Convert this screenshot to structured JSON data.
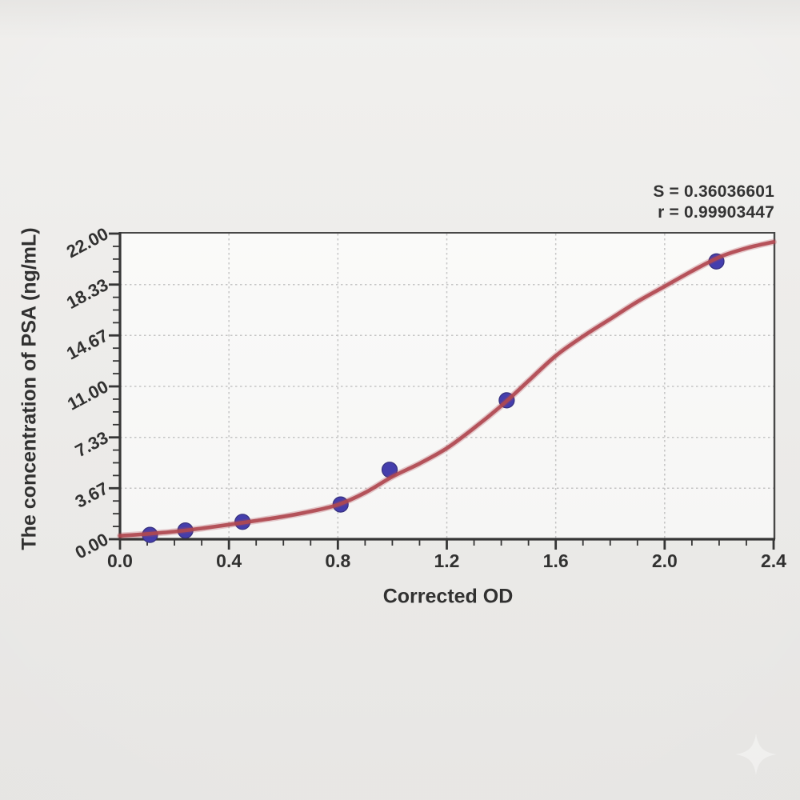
{
  "stats": {
    "s_label": "S = 0.36036601",
    "r_label": "r = 0.99903447"
  },
  "chart_data": {
    "type": "scatter",
    "title": "",
    "xlabel": "Corrected OD",
    "ylabel": "The concentration of PSA (ng/mL)",
    "xlim": [
      0,
      2.4
    ],
    "ylim": [
      0,
      22
    ],
    "x_ticks": [
      0,
      0.4,
      0.8,
      1.2,
      1.6,
      2.0,
      2.4
    ],
    "x_tick_labels": [
      "0.0",
      "0.4",
      "0.8",
      "1.2",
      "1.6",
      "2.0",
      "2.4"
    ],
    "x_minor_step": 0.1,
    "y_ticks": [
      0,
      3.67,
      7.33,
      11.0,
      14.67,
      18.33,
      22.0
    ],
    "y_tick_labels": [
      "0.00",
      "3.67",
      "7.33",
      "11.00",
      "14.67",
      "18.33",
      "22.00"
    ],
    "y_minors_between_majors": 3,
    "grid": "dotted",
    "legend": "none",
    "series": [
      {
        "name": "standard-points",
        "type": "scatter",
        "points": [
          [
            0.11,
            0.31
          ],
          [
            0.24,
            0.63
          ],
          [
            0.45,
            1.25
          ],
          [
            0.81,
            2.5
          ],
          [
            0.99,
            5.0
          ],
          [
            1.42,
            10.0
          ],
          [
            2.19,
            20.0
          ]
        ]
      },
      {
        "name": "fit-curve",
        "type": "line",
        "points": [
          [
            0.0,
            0.25
          ],
          [
            0.1,
            0.38
          ],
          [
            0.2,
            0.55
          ],
          [
            0.3,
            0.78
          ],
          [
            0.4,
            1.05
          ],
          [
            0.5,
            1.33
          ],
          [
            0.6,
            1.63
          ],
          [
            0.7,
            2.0
          ],
          [
            0.8,
            2.48
          ],
          [
            0.9,
            3.35
          ],
          [
            1.0,
            4.5
          ],
          [
            1.1,
            5.45
          ],
          [
            1.2,
            6.55
          ],
          [
            1.3,
            8.0
          ],
          [
            1.4,
            9.6
          ],
          [
            1.5,
            11.4
          ],
          [
            1.6,
            13.2
          ],
          [
            1.7,
            14.6
          ],
          [
            1.8,
            15.85
          ],
          [
            1.9,
            17.1
          ],
          [
            2.0,
            18.2
          ],
          [
            2.1,
            19.3
          ],
          [
            2.2,
            20.3
          ],
          [
            2.3,
            20.95
          ],
          [
            2.4,
            21.4
          ]
        ]
      }
    ],
    "colors": {
      "curve": "#a93038",
      "points": "#2a23a5",
      "point_edge": "#1a146e",
      "grid": "#c2c2c2",
      "axis": "#1a1a1a",
      "spine_secondary": "#2f2f2f",
      "tick_label": "#141414",
      "plot_bg": "#fdfdfc",
      "page_bg": "#efeeec",
      "watermark": "#ffffff"
    }
  }
}
